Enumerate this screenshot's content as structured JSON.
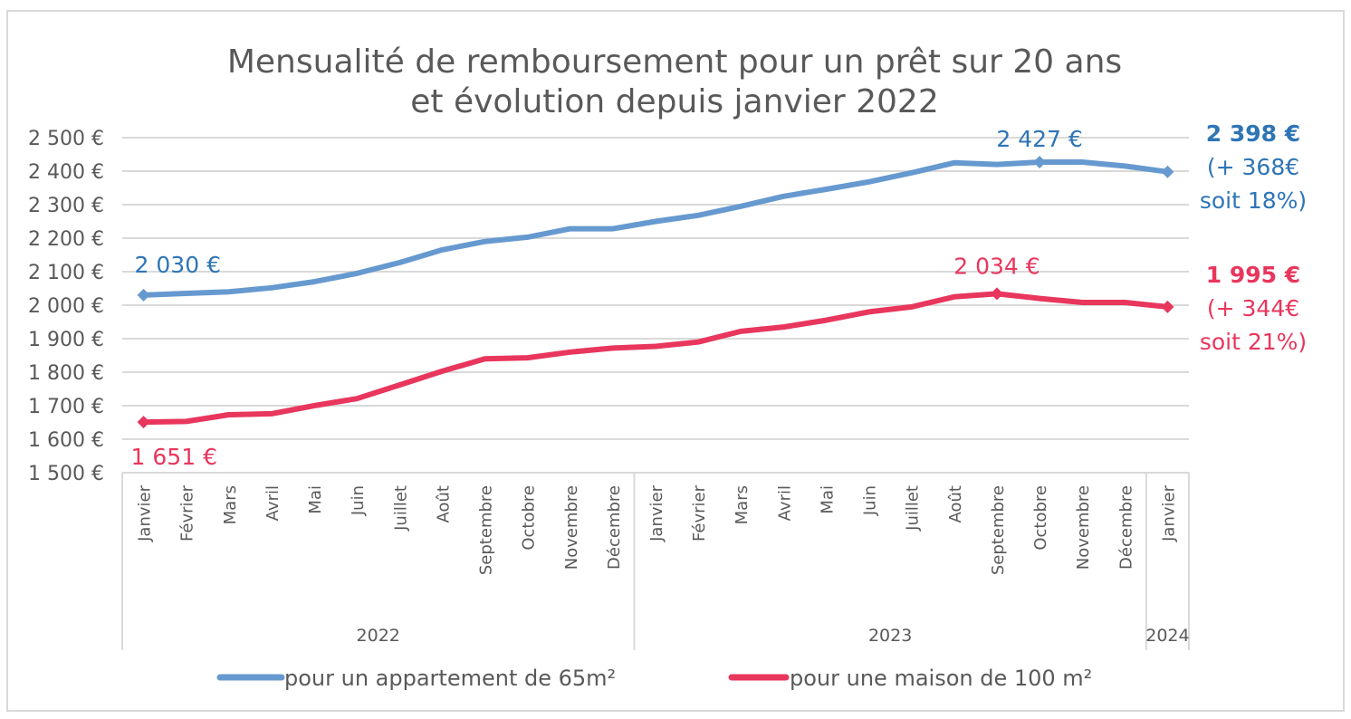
{
  "chart_data": {
    "type": "line",
    "title": [
      "Mensualité de remboursement pour un prêt sur 20 ans",
      "et évolution depuis janvier 2022"
    ],
    "xlabel": "",
    "ylabel": "",
    "ylim": [
      1500,
      2500
    ],
    "ytick_step": 100,
    "yticks": [
      "1 500 €",
      "1 600 €",
      "1 700 €",
      "1 800 €",
      "1 900 €",
      "2 000 €",
      "2 100 €",
      "2 200 €",
      "2 300 €",
      "2 400 €",
      "2 500 €"
    ],
    "grid": true,
    "categories": [
      "Janvier",
      "Février",
      "Mars",
      "Avril",
      "Mai",
      "Juin",
      "Juillet",
      "Août",
      "Septembre",
      "Octobre",
      "Novembre",
      "Décembre",
      "Janvier",
      "Février",
      "Mars",
      "Avril",
      "Mai",
      "Juin",
      "Juillet",
      "Août",
      "Septembre",
      "Octobre",
      "Novembre",
      "Décembre",
      "Janvier"
    ],
    "year_groups": [
      {
        "label": "2022",
        "count": 12
      },
      {
        "label": "2023",
        "count": 12
      },
      {
        "label": "2024",
        "count": 1
      }
    ],
    "legend_position": "bottom",
    "series": [
      {
        "name": "pour un appartement de 65m²",
        "color": "#6699cf",
        "label_color": "#2e75b6",
        "values": [
          2030,
          2035,
          2040,
          2052,
          2070,
          2095,
          2127,
          2165,
          2190,
          2203,
          2228,
          2228,
          2250,
          2268,
          2295,
          2325,
          2346,
          2368,
          2395,
          2425,
          2420,
          2427,
          2427,
          2415,
          2398
        ],
        "markers": [
          0,
          21,
          24
        ],
        "data_labels": [
          {
            "index": 0,
            "text": "2 030 €"
          },
          {
            "index": 21,
            "text": "2 427 €"
          }
        ],
        "annotation": [
          "2 398 €",
          "(+ 368€",
          "soit 18%)"
        ]
      },
      {
        "name": "pour une maison de 100 m²",
        "color": "#e8365d",
        "label_color": "#e8365d",
        "values": [
          1651,
          1653,
          1673,
          1676,
          1700,
          1721,
          1762,
          1803,
          1840,
          1843,
          1860,
          1872,
          1877,
          1890,
          1922,
          1935,
          1955,
          1980,
          1995,
          2025,
          2034,
          2020,
          2008,
          2008,
          1995
        ],
        "markers": [
          0,
          20,
          24
        ],
        "data_labels": [
          {
            "index": 0,
            "text": "1 651 €"
          },
          {
            "index": 20,
            "text": "2 034 €"
          }
        ],
        "annotation": [
          "1 995 €",
          "(+ 344€",
          "soit 21%)"
        ]
      }
    ]
  }
}
